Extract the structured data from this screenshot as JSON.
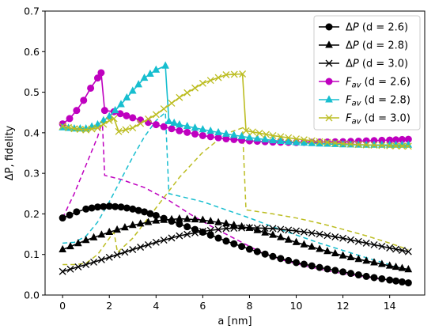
{
  "chart_data": {
    "type": "line",
    "title": "",
    "xlabel": "a [nm]",
    "ylabel": "ΔP, fidelity",
    "xlim": [
      -0.75,
      15.5
    ],
    "ylim": [
      0.0,
      0.7
    ],
    "xticks": [
      0,
      2,
      4,
      6,
      8,
      10,
      12,
      14
    ],
    "yticks": [
      0.0,
      0.1,
      0.2,
      0.3,
      0.4,
      0.5,
      0.6,
      0.7
    ],
    "xtick_labels": [
      "0",
      "2",
      "4",
      "6",
      "8",
      "10",
      "12",
      "14"
    ],
    "ytick_labels": [
      "0.0",
      "0.1",
      "0.2",
      "0.3",
      "0.4",
      "0.5",
      "0.6",
      "0.7"
    ],
    "grid": false,
    "legend_position": "top-right",
    "colors": {
      "black": "#000000",
      "magenta": "#bf00bf",
      "cyan": "#17becf",
      "olive": "#bcbd22"
    },
    "series": [
      {
        "legend_label": "ΔP (d = 2.6)",
        "color": "#000000",
        "marker": "circle",
        "style": "solid",
        "x": [
          0,
          0.3,
          0.6,
          1,
          1.5,
          2,
          2.5,
          3,
          3.5,
          4,
          5,
          6,
          7,
          8,
          9,
          10,
          11,
          12,
          13,
          14,
          14.8
        ],
        "y": [
          0.19,
          0.197,
          0.205,
          0.212,
          0.217,
          0.219,
          0.217,
          0.212,
          0.205,
          0.196,
          0.175,
          0.155,
          0.133,
          0.113,
          0.095,
          0.08,
          0.068,
          0.057,
          0.046,
          0.037,
          0.03
        ]
      },
      {
        "legend_label": "ΔP (d = 2.8)",
        "color": "#000000",
        "marker": "triangle",
        "style": "solid",
        "x": [
          0,
          1,
          2,
          3,
          4,
          5,
          6,
          7,
          8,
          9,
          10,
          11,
          12,
          13,
          14,
          14.8
        ],
        "y": [
          0.112,
          0.135,
          0.155,
          0.172,
          0.183,
          0.188,
          0.185,
          0.176,
          0.165,
          0.148,
          0.13,
          0.113,
          0.097,
          0.084,
          0.072,
          0.063
        ]
      },
      {
        "legend_label": "ΔP (d = 3.0)",
        "color": "#000000",
        "marker": "x",
        "style": "solid",
        "x": [
          0,
          1,
          2,
          3,
          4,
          5,
          6,
          7,
          8,
          9,
          10,
          11,
          12,
          13,
          14,
          14.8
        ],
        "y": [
          0.058,
          0.075,
          0.093,
          0.112,
          0.13,
          0.146,
          0.157,
          0.164,
          0.166,
          0.164,
          0.158,
          0.15,
          0.14,
          0.128,
          0.116,
          0.107
        ]
      },
      {
        "legend_label": "F_av (d = 2.6)",
        "color": "#bf00bf",
        "marker": "circle",
        "style": "solid",
        "x": [
          0,
          0.3,
          0.6,
          0.9,
          1.2,
          1.5,
          1.65,
          1.8,
          2.2,
          3,
          4,
          5,
          6,
          7,
          8,
          9,
          10,
          11,
          12,
          13,
          14,
          14.8
        ],
        "y": [
          0.422,
          0.435,
          0.455,
          0.48,
          0.51,
          0.535,
          0.548,
          0.455,
          0.452,
          0.437,
          0.42,
          0.405,
          0.393,
          0.385,
          0.38,
          0.377,
          0.376,
          0.377,
          0.378,
          0.38,
          0.382,
          0.384
        ]
      },
      {
        "legend_label": "F_av (d = 2.8)",
        "color": "#17becf",
        "marker": "triangle",
        "style": "solid",
        "x": [
          0,
          0.5,
          1,
          1.5,
          2,
          2.5,
          3,
          3.5,
          4,
          4.4,
          4.55,
          5,
          6,
          7,
          8,
          9,
          10,
          11,
          12,
          13,
          14,
          14.8
        ],
        "y": [
          0.413,
          0.41,
          0.41,
          0.42,
          0.44,
          0.47,
          0.503,
          0.535,
          0.555,
          0.565,
          0.428,
          0.42,
          0.408,
          0.397,
          0.388,
          0.381,
          0.376,
          0.373,
          0.371,
          0.37,
          0.37,
          0.37
        ]
      },
      {
        "legend_label": "F_av (d = 3.0)",
        "color": "#bcbd22",
        "marker": "x",
        "style": "solid",
        "x": [
          0,
          0.5,
          1,
          1.5,
          2,
          2.2,
          2.4,
          3,
          4,
          5,
          6,
          7,
          7.7,
          7.85,
          9,
          10,
          11,
          12,
          13,
          14,
          14.8
        ],
        "y": [
          0.416,
          0.41,
          0.407,
          0.412,
          0.43,
          0.435,
          0.403,
          0.412,
          0.445,
          0.487,
          0.522,
          0.543,
          0.545,
          0.405,
          0.393,
          0.385,
          0.378,
          0.373,
          0.37,
          0.368,
          0.367
        ]
      },
      {
        "color": "#bf00bf",
        "marker": "none",
        "style": "dashed",
        "x": [
          0,
          0.5,
          1,
          1.5,
          1.7,
          1.8,
          2.5,
          3.5,
          4.5,
          5.5,
          6.5,
          7.5,
          8.5,
          9.5,
          10.5,
          11.5,
          12.5,
          13.5,
          14.8
        ],
        "y": [
          0.19,
          0.25,
          0.32,
          0.39,
          0.43,
          0.295,
          0.285,
          0.265,
          0.235,
          0.198,
          0.165,
          0.135,
          0.105,
          0.085,
          0.07,
          0.058,
          0.048,
          0.04,
          0.032
        ]
      },
      {
        "color": "#17becf",
        "marker": "none",
        "style": "dashed",
        "x": [
          0,
          0.5,
          1,
          1.5,
          2,
          2.5,
          3,
          3.5,
          4,
          4.4,
          4.55,
          6,
          7,
          8,
          9,
          10,
          11,
          12,
          13,
          14,
          14.8
        ],
        "y": [
          0.128,
          0.13,
          0.145,
          0.18,
          0.23,
          0.285,
          0.34,
          0.39,
          0.43,
          0.45,
          0.25,
          0.23,
          0.21,
          0.19,
          0.168,
          0.148,
          0.128,
          0.11,
          0.092,
          0.075,
          0.062
        ]
      },
      {
        "color": "#bcbd22",
        "marker": "none",
        "style": "dashed",
        "x": [
          0,
          0.5,
          1,
          1.5,
          2,
          2.2,
          2.35,
          3,
          4,
          5,
          6,
          7,
          7.7,
          7.85,
          9,
          10,
          11,
          12,
          13,
          14,
          14.8
        ],
        "y": [
          0.075,
          0.075,
          0.078,
          0.1,
          0.14,
          0.155,
          0.105,
          0.14,
          0.215,
          0.29,
          0.352,
          0.398,
          0.412,
          0.21,
          0.2,
          0.19,
          0.177,
          0.162,
          0.146,
          0.128,
          0.112
        ]
      }
    ]
  }
}
